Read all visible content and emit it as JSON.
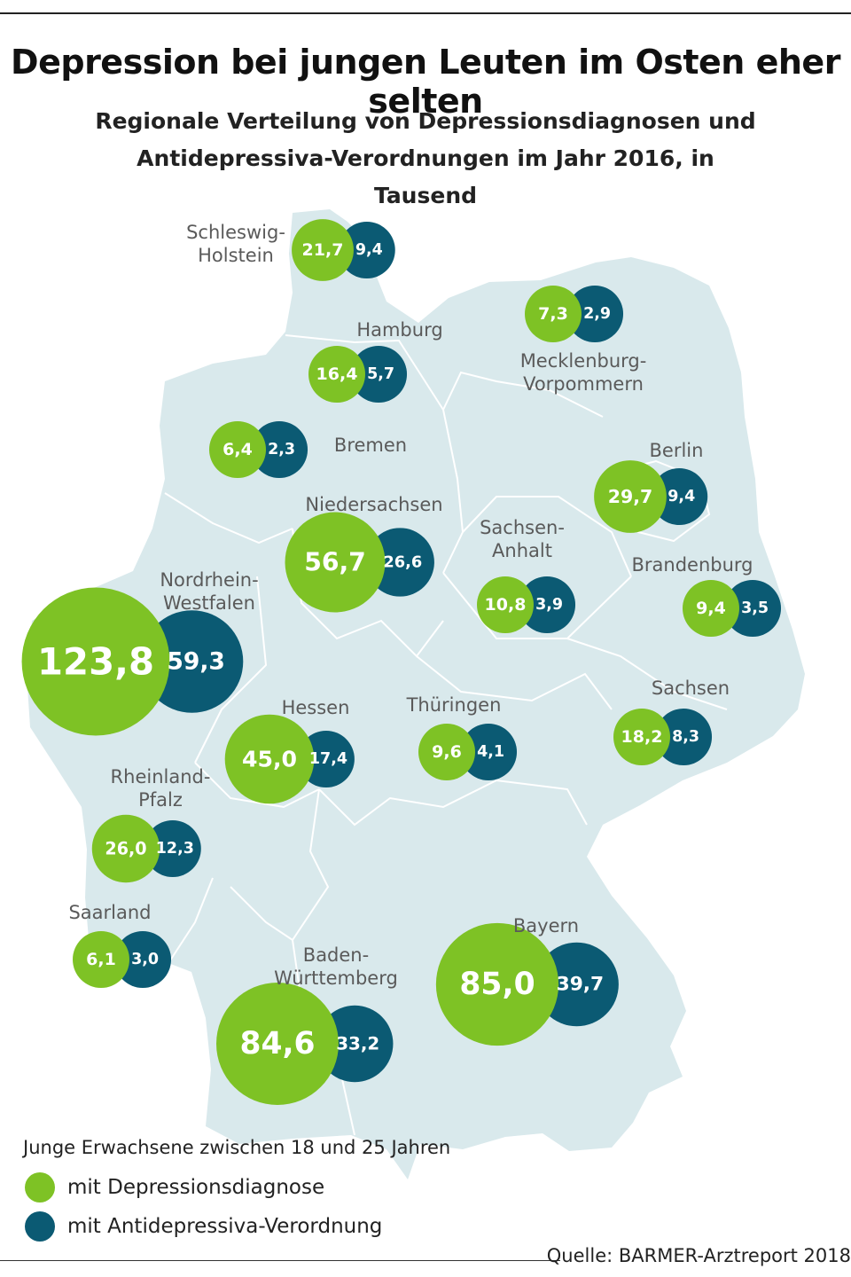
{
  "title": "Depression bei jungen Leuten im Osten eher selten",
  "subtitle_line1": "Regionale Verteilung von Depressionsdiagnosen und",
  "subtitle_line2": "Antidepressiva-Verordnungen im Jahr 2016, in Tausend",
  "colors": {
    "map_fill": "#d9e9ec",
    "map_border": "#ffffff",
    "diagnosis": "#7ec225",
    "prescription": "#0b5a73",
    "label": "#5a5a5a"
  },
  "legend": {
    "title": "Junge Erwachsene zwischen 18 und 25 Jahren",
    "diagnosis_label": "mit Depressionsdiagnose",
    "prescription_label": "mit Antidepressiva-Verordnung"
  },
  "source": "Quelle: BARMER-Arztreport 2018",
  "chart_data": {
    "type": "proportional-symbol-map",
    "unit": "Tausend",
    "regions": [
      {
        "name": [
          "Schleswig-",
          "Holstein"
        ],
        "diagnosis": "21,7",
        "prescription": "9,4"
      },
      {
        "name": [
          "Hamburg"
        ],
        "diagnosis": "16,4",
        "prescription": "5,7"
      },
      {
        "name": [
          "Mecklenburg-",
          "Vorpommern"
        ],
        "diagnosis": "7,3",
        "prescription": "2,9"
      },
      {
        "name": [
          "Bremen"
        ],
        "diagnosis": "6,4",
        "prescription": "2,3"
      },
      {
        "name": [
          "Niedersachsen"
        ],
        "diagnosis": "56,7",
        "prescription": "26,6"
      },
      {
        "name": [
          "Berlin"
        ],
        "diagnosis": "29,7",
        "prescription": "9,4"
      },
      {
        "name": [
          "Sachsen-",
          "Anhalt"
        ],
        "diagnosis": "10,8",
        "prescription": "3,9"
      },
      {
        "name": [
          "Brandenburg"
        ],
        "diagnosis": "9,4",
        "prescription": "3,5"
      },
      {
        "name": [
          "Nordrhein-",
          "Westfalen"
        ],
        "diagnosis": "123,8",
        "prescription": "59,3"
      },
      {
        "name": [
          "Hessen"
        ],
        "diagnosis": "45,0",
        "prescription": "17,4"
      },
      {
        "name": [
          "Thüringen"
        ],
        "diagnosis": "9,6",
        "prescription": "4,1"
      },
      {
        "name": [
          "Sachsen"
        ],
        "diagnosis": "18,2",
        "prescription": "8,3"
      },
      {
        "name": [
          "Rheinland-",
          "Pfalz"
        ],
        "diagnosis": "26,0",
        "prescription": "12,3"
      },
      {
        "name": [
          "Saarland"
        ],
        "diagnosis": "6,1",
        "prescription": "3,0"
      },
      {
        "name": [
          "Bayern"
        ],
        "diagnosis": "85,0",
        "prescription": "39,7"
      },
      {
        "name": [
          "Baden-",
          "Württemberg"
        ],
        "diagnosis": "84,6",
        "prescription": "33,2"
      }
    ]
  }
}
